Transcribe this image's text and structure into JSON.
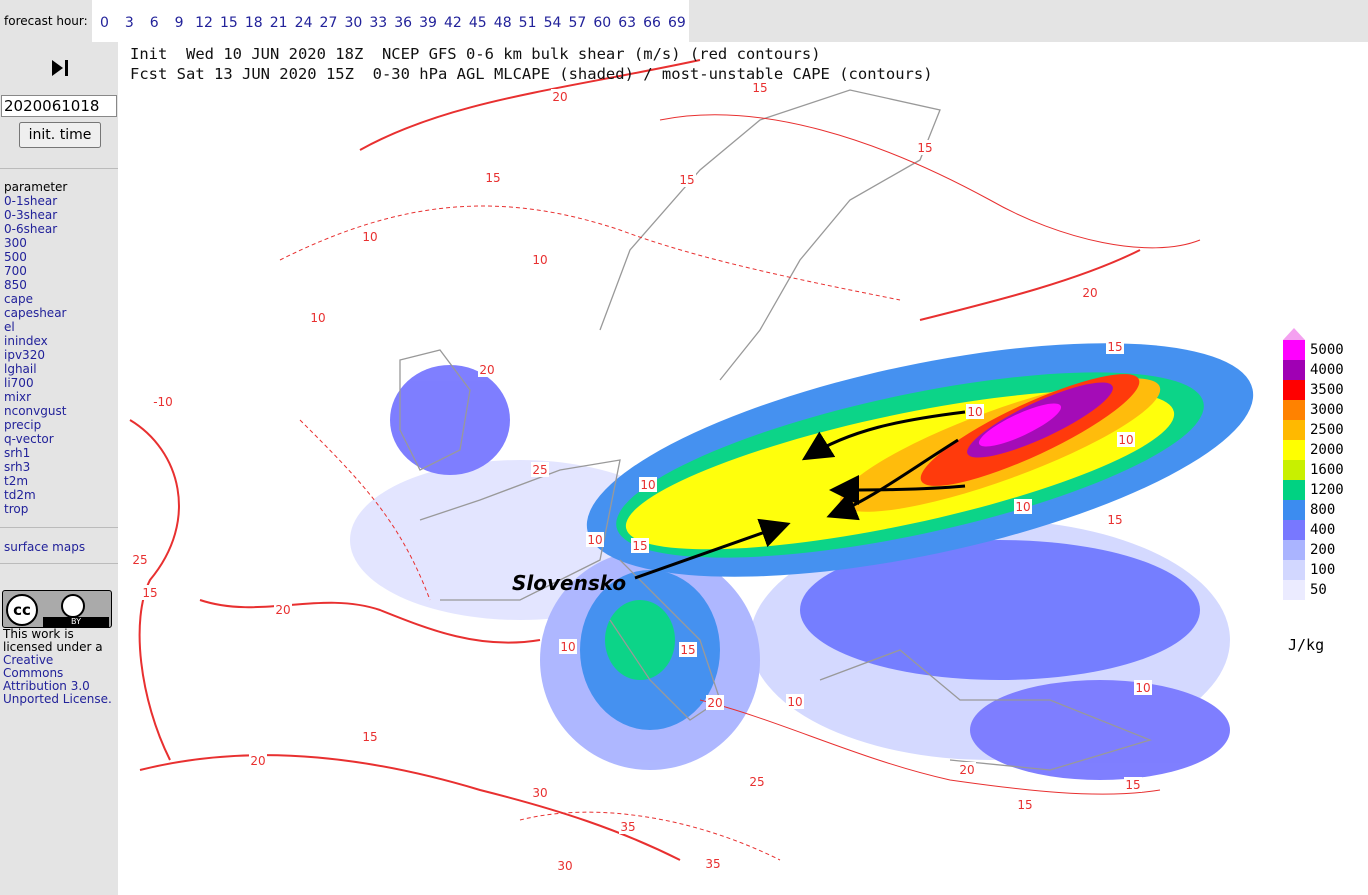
{
  "header": {
    "forecast_label": "forecast hour:",
    "hours": [
      0,
      3,
      6,
      9,
      12,
      15,
      18,
      21,
      24,
      27,
      30,
      33,
      36,
      39,
      42,
      45,
      48,
      51,
      54,
      57,
      60,
      63,
      66,
      69
    ]
  },
  "title": {
    "line1": "Init  Wed 10 JUN 2020 18Z  NCEP GFS 0-6 km bulk shear (m/s) (red contours)",
    "line2": "Fcst Sat 13 JUN 2020 15Z  0-30 hPa AGL MLCAPE (shaded) / most-unstable CAPE (contours)"
  },
  "sidebar": {
    "init_value": "2020061018",
    "init_button": "init. time",
    "parameter_heading": "parameter",
    "parameters": [
      "0-1shear",
      "0-3shear",
      "0-6shear",
      "300",
      "500",
      "700",
      "850",
      "cape",
      "capeshear",
      "el",
      "inindex",
      "ipv320",
      "lghail",
      "li700",
      "mixr",
      "nconvgust",
      "precip",
      "q-vector",
      "srh1",
      "srh3",
      "t2m",
      "td2m",
      "trop"
    ],
    "surface_link": "surface maps",
    "license": {
      "badge_cc": "cc",
      "badge_by": "BY",
      "text": "This work is licensed under a",
      "link": "Creative Commons Attribution 3.0 Unported License."
    }
  },
  "legend": {
    "levels": [
      {
        "value": 5000,
        "color": "#ff00ff"
      },
      {
        "value": 4000,
        "color": "#a000b4"
      },
      {
        "value": 3500,
        "color": "#ff0000"
      },
      {
        "value": 3000,
        "color": "#ff8200"
      },
      {
        "value": 2500,
        "color": "#ffb900"
      },
      {
        "value": 2000,
        "color": "#ffff00"
      },
      {
        "value": 1600,
        "color": "#c8f000"
      },
      {
        "value": 1200,
        "color": "#00d282"
      },
      {
        "value": 800,
        "color": "#3c8cf0"
      },
      {
        "value": 400,
        "color": "#7878ff"
      },
      {
        "value": 200,
        "color": "#aab4ff"
      },
      {
        "value": 100,
        "color": "#d2d7ff"
      },
      {
        "value": 50,
        "color": "#ebebff"
      }
    ],
    "top_color": "#f4a0f0",
    "unit": "J/kg"
  },
  "map": {
    "annotation": "Slovensko",
    "contour_labels": [
      20,
      15,
      15,
      15,
      15,
      10,
      10,
      10,
      20,
      15,
      10,
      10,
      10,
      15,
      20,
      25,
      10,
      15,
      10,
      15,
      20,
      10,
      20,
      15,
      25,
      30,
      35,
      30,
      35,
      -10,
      25,
      20,
      15,
      10,
      15,
      20,
      15,
      10
    ]
  }
}
